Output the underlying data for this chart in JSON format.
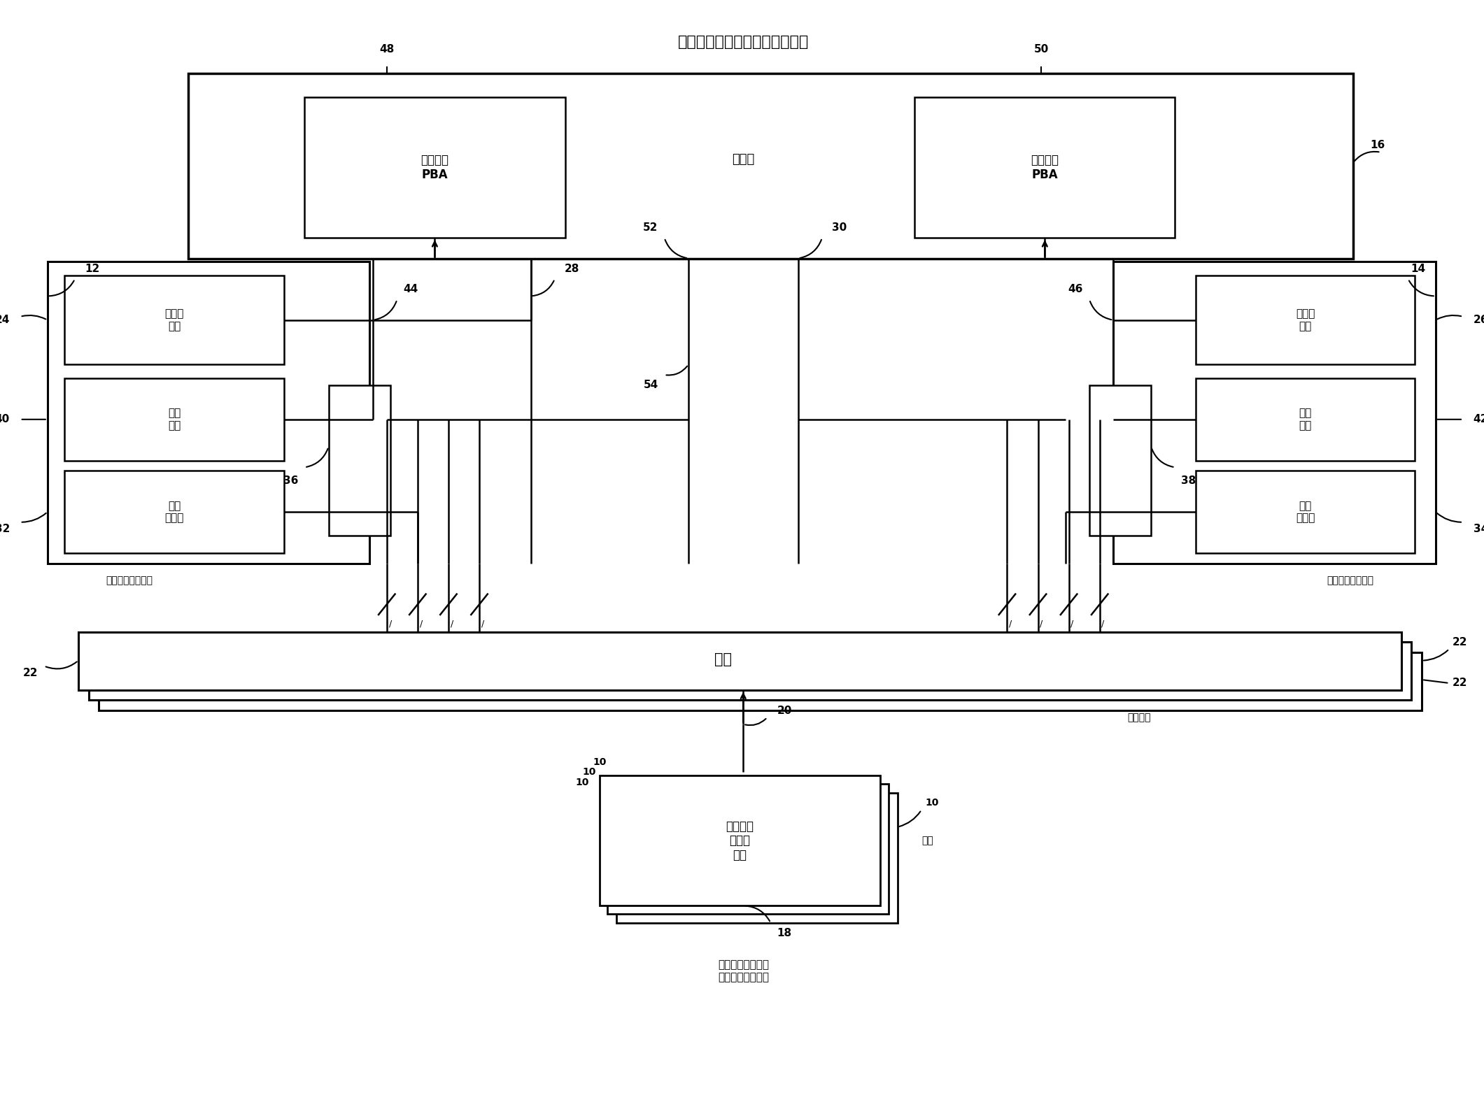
{
  "bg_color": "#ffffff",
  "line_color": "#000000",
  "font_color": "#000000",
  "title": "用于侧操纵杆优先级信号的架构",
  "main_pba": "主飞行员\nPBA",
  "copilot_pba": "副飞行员\nPBA",
  "shutter": "遮光板",
  "priority_btn": "优先级\n按钮",
  "trim_btn": "配平\n按钮",
  "pos_sensor": "位置\n传感器",
  "interface_label": "接口",
  "sidestick_logic": "侧操纵杆\n优先级\n逻辑",
  "redundant": "冗余",
  "redundant_interface": "冗余接口",
  "flight_computer": "飞行控制计算机或\n飞行控制电子器件",
  "left_pilot": "飞行员用侧操纵杆",
  "right_pilot": "飞行员用侧操纵杆"
}
